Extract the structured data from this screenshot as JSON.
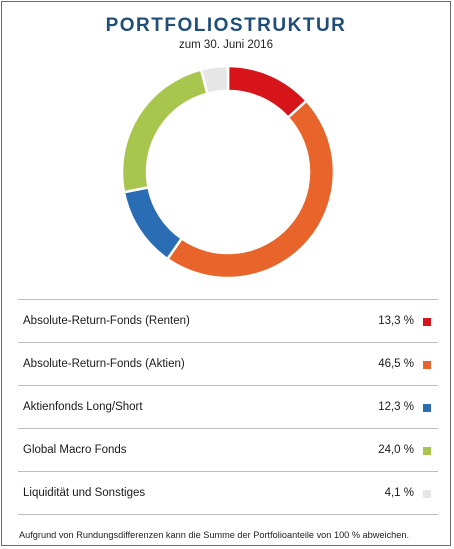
{
  "title": "PORTFOLIOSTRUKTUR",
  "subtitle": "zum 30. Juni 2016",
  "footnote": "Aufgrund von Rundungsdifferenzen kann die Summe der Portfolioanteile von 100 % abweichen.",
  "chart_data": {
    "type": "pie",
    "categories": [
      "Absolute-Return-Fonds (Renten)",
      "Absolute-Return-Fonds (Aktien)",
      "Aktienfonds Long/Short",
      "Global Macro Fonds",
      "Liquidität und Sonstiges"
    ],
    "values": [
      13.3,
      46.5,
      12.3,
      24.0,
      4.1
    ],
    "value_labels": [
      "13,3 %",
      "46,5 %",
      "12,3 %",
      "24,0 %",
      "4,1 %"
    ],
    "colors": [
      "#d7141a",
      "#e8642a",
      "#2a6db5",
      "#a8c64e",
      "#e6e6e6"
    ],
    "title": "PORTFOLIOSTRUKTUR",
    "subtitle": "zum 30. Juni 2016"
  }
}
